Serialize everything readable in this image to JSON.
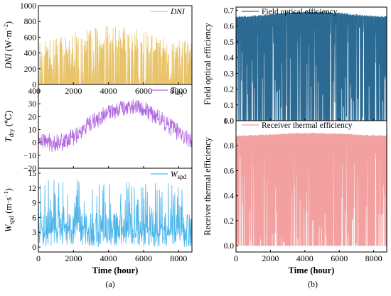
{
  "chart_data": [
    {
      "id": "dni",
      "type": "line",
      "legend": {
        "label": "DNI",
        "position": "top-right",
        "italic": true
      },
      "ylabel_main": "DNI",
      "ylabel_unit": " (W·m",
      "ylabel_exp": "−2",
      "ylabel_close": ")",
      "ylim": [
        0,
        1000
      ],
      "yticks": [
        "0",
        "200",
        "400",
        "600",
        "800",
        "1000"
      ],
      "yticks_values": [
        0,
        200,
        400,
        600,
        800,
        1000
      ],
      "xlim": [
        0,
        8760
      ],
      "xticks": [
        "0",
        "2000",
        "4000",
        "6000",
        "8000"
      ],
      "xticks_values": [
        0,
        2000,
        4000,
        6000,
        8000
      ],
      "color": "#E8C36A",
      "profile": {
        "kind": "dni",
        "points": 460,
        "peak_values": [
          0,
          900
        ]
      }
    },
    {
      "id": "tdry",
      "type": "line",
      "legend": {
        "label": "T",
        "sub": "dry",
        "position": "top-right",
        "italic": true
      },
      "ylabel_main": "T",
      "ylabel_sub": "dry",
      "ylabel_unit": " (℃)",
      "ylim": [
        -20,
        45
      ],
      "yticks": [
        "−20",
        "−10",
        "0",
        "10",
        "20",
        "30",
        "40"
      ],
      "yticks_values": [
        -20,
        -10,
        0,
        10,
        20,
        30,
        40
      ],
      "xlim": [
        0,
        8760
      ],
      "color": "#B36BE0",
      "profile": {
        "kind": "seasonal",
        "winter_value": 0,
        "summer_value": 28,
        "summer_peak_hour": 5200,
        "noise": 6,
        "range": [
          -8,
          35
        ]
      }
    },
    {
      "id": "wspd",
      "type": "line",
      "legend": {
        "label": "W",
        "sub": "spd",
        "position": "top-right",
        "italic": true
      },
      "ylabel_main": "W",
      "ylabel_sub": "spd",
      "ylabel_unit": " (m·s",
      "ylabel_exp": "−1",
      "ylabel_close": ")",
      "ylim": [
        -1,
        16
      ],
      "yticks": [
        "0",
        "3",
        "6",
        "9",
        "12",
        "15"
      ],
      "yticks_values": [
        0,
        3,
        6,
        9,
        12,
        15
      ],
      "xlim": [
        0,
        8760
      ],
      "xticks": [
        "0",
        "2000",
        "4000",
        "6000",
        "8000"
      ],
      "xticks_values": [
        0,
        2000,
        4000,
        6000,
        8000
      ],
      "xlabel": "Time (hour)",
      "color": "#4DB5EA",
      "profile": {
        "kind": "wind",
        "mean": 4,
        "range": [
          0,
          15
        ]
      }
    },
    {
      "id": "field",
      "type": "line",
      "legend": {
        "label": "Field optical efficiency",
        "position": "top-left"
      },
      "ylabel": "Field optical efficiency",
      "ylim": [
        0,
        0.72
      ],
      "yticks": [
        "0.0",
        "0.1",
        "0.2",
        "0.3",
        "0.4",
        "0.5",
        "0.6",
        "0.7"
      ],
      "yticks_values": [
        0,
        0.1,
        0.2,
        0.3,
        0.4,
        0.5,
        0.6,
        0.7
      ],
      "xlim": [
        0,
        8760
      ],
      "color": "#2B6A92",
      "profile": {
        "kind": "efficiency",
        "winter_value": 0.66,
        "summer_value": 0.69,
        "range": [
          0,
          0.69
        ]
      }
    },
    {
      "id": "receiver",
      "type": "line",
      "legend": {
        "label": "Receiver thermal efficiency",
        "position": "top-left"
      },
      "ylabel": "Receiver thermal efficiency",
      "ylim": [
        -0.05,
        1.0
      ],
      "yticks": [
        "0.0",
        "0.2",
        "0.4",
        "0.6",
        "0.8",
        "1.0"
      ],
      "yticks_values": [
        0,
        0.2,
        0.4,
        0.6,
        0.8,
        1.0
      ],
      "xlim": [
        0,
        8760
      ],
      "xticks": [
        "0",
        "2000",
        "4000",
        "6000",
        "8000"
      ],
      "xticks_values": [
        0,
        2000,
        4000,
        6000,
        8000
      ],
      "xlabel": "Time (hour)",
      "color": "#F2A0A0",
      "profile": {
        "kind": "efficiency",
        "winter_value": 0.88,
        "summer_value": 0.9,
        "range": [
          0,
          0.93
        ]
      }
    }
  ],
  "subcaptions": {
    "left": "(a)",
    "right": "(b)"
  }
}
